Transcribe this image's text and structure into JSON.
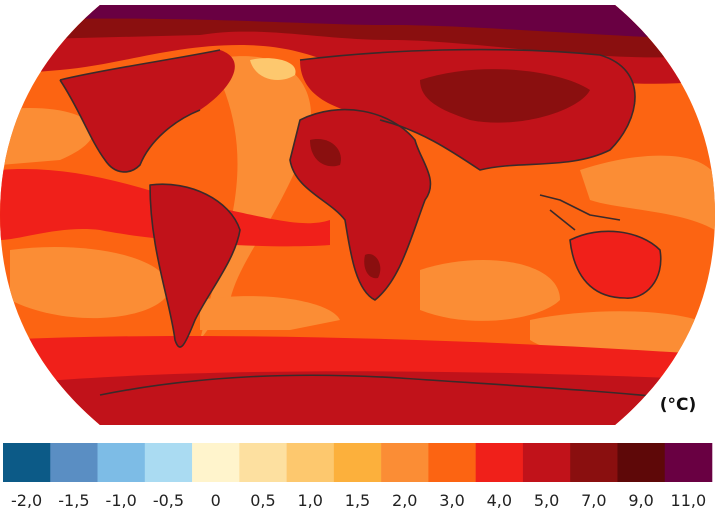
{
  "map": {
    "unit": "(°C)"
  },
  "colorbar": {
    "colors": [
      "#0c5a87",
      "#5a8ec3",
      "#7dbce6",
      "#aadbf2",
      "#fff4cc",
      "#fde0a0",
      "#fdc86e",
      "#fcb03c",
      "#fb8d35",
      "#fc6412",
      "#f0201a",
      "#c1121a",
      "#8a0f0f",
      "#5e0808",
      "#690042"
    ],
    "ticks": [
      {
        "value": -2,
        "label": "-2,0"
      },
      {
        "value": -1.5,
        "label": "-1,5"
      },
      {
        "value": -1,
        "label": "-1,0"
      },
      {
        "value": -0.5,
        "label": "-0,5"
      },
      0,
      {
        "value": 0.5,
        "label": "0,5"
      },
      {
        "value": 1,
        "label": "1,0"
      },
      {
        "value": 1.5,
        "label": "1,5"
      },
      {
        "value": 2,
        "label": "2,0"
      },
      {
        "value": 3,
        "label": "3,0"
      },
      {
        "value": 4,
        "label": "4,0"
      },
      {
        "value": 5,
        "label": "5,0"
      },
      {
        "value": 7,
        "label": "7,0"
      },
      {
        "value": 9,
        "label": "9,0"
      },
      {
        "value": 11,
        "label": "11,0"
      }
    ]
  }
}
